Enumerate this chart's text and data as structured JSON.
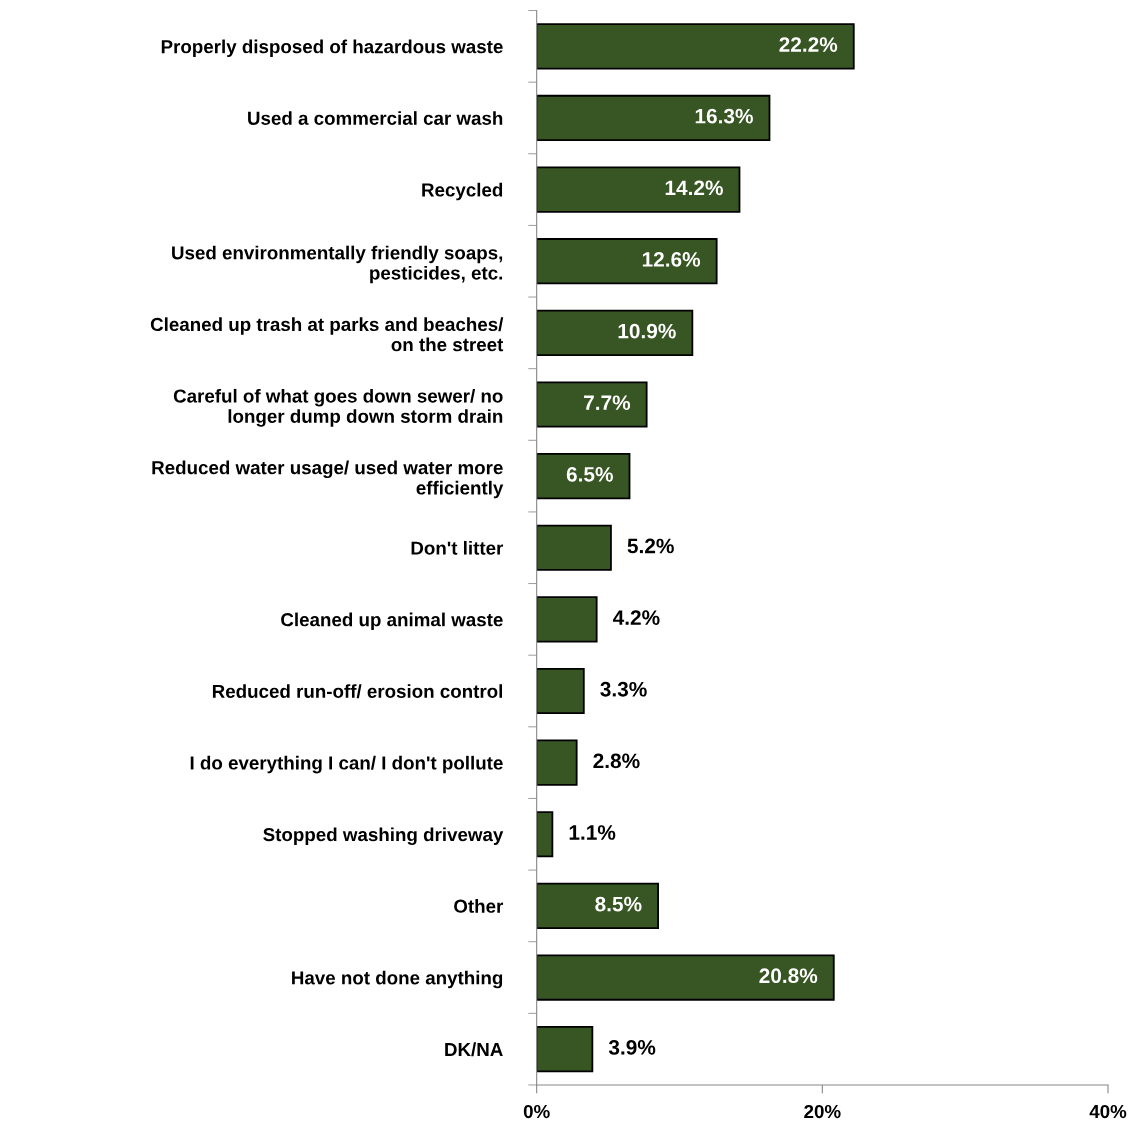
{
  "chart_data": {
    "type": "bar",
    "orientation": "horizontal",
    "categories": [
      "Properly disposed of hazardous waste",
      "Used a commercial car wash",
      "Recycled",
      "Used environmentally friendly soaps, pesticides, etc.",
      "Cleaned up trash at parks and beaches/ on the street",
      "Careful of what goes down sewer/ no longer dump down storm drain",
      "Reduced water usage/ used water more efficiently",
      "Don't litter",
      "Cleaned up animal waste",
      "Reduced run-off/ erosion control",
      "I do everything I can/ I don't pollute",
      "Stopped washing driveway",
      "Other",
      "Have not done anything",
      "DK/NA"
    ],
    "values": [
      22.2,
      16.3,
      14.2,
      12.6,
      10.9,
      7.7,
      6.5,
      5.2,
      4.2,
      3.3,
      2.8,
      1.1,
      8.5,
      20.8,
      3.9
    ],
    "value_labels": [
      "22.2%",
      "16.3%",
      "14.2%",
      "12.6%",
      "10.9%",
      "7.7%",
      "6.5%",
      "5.2%",
      "4.2%",
      "3.3%",
      "2.8%",
      "1.1%",
      "8.5%",
      "20.8%",
      "3.9%"
    ],
    "color": "#375623",
    "xlim": [
      0,
      40
    ],
    "xticks": [
      {
        "value": 0,
        "label": "0%"
      },
      {
        "value": 20,
        "label": "20%"
      },
      {
        "value": 40,
        "label": "40%"
      }
    ],
    "grid": false,
    "legend": false
  }
}
